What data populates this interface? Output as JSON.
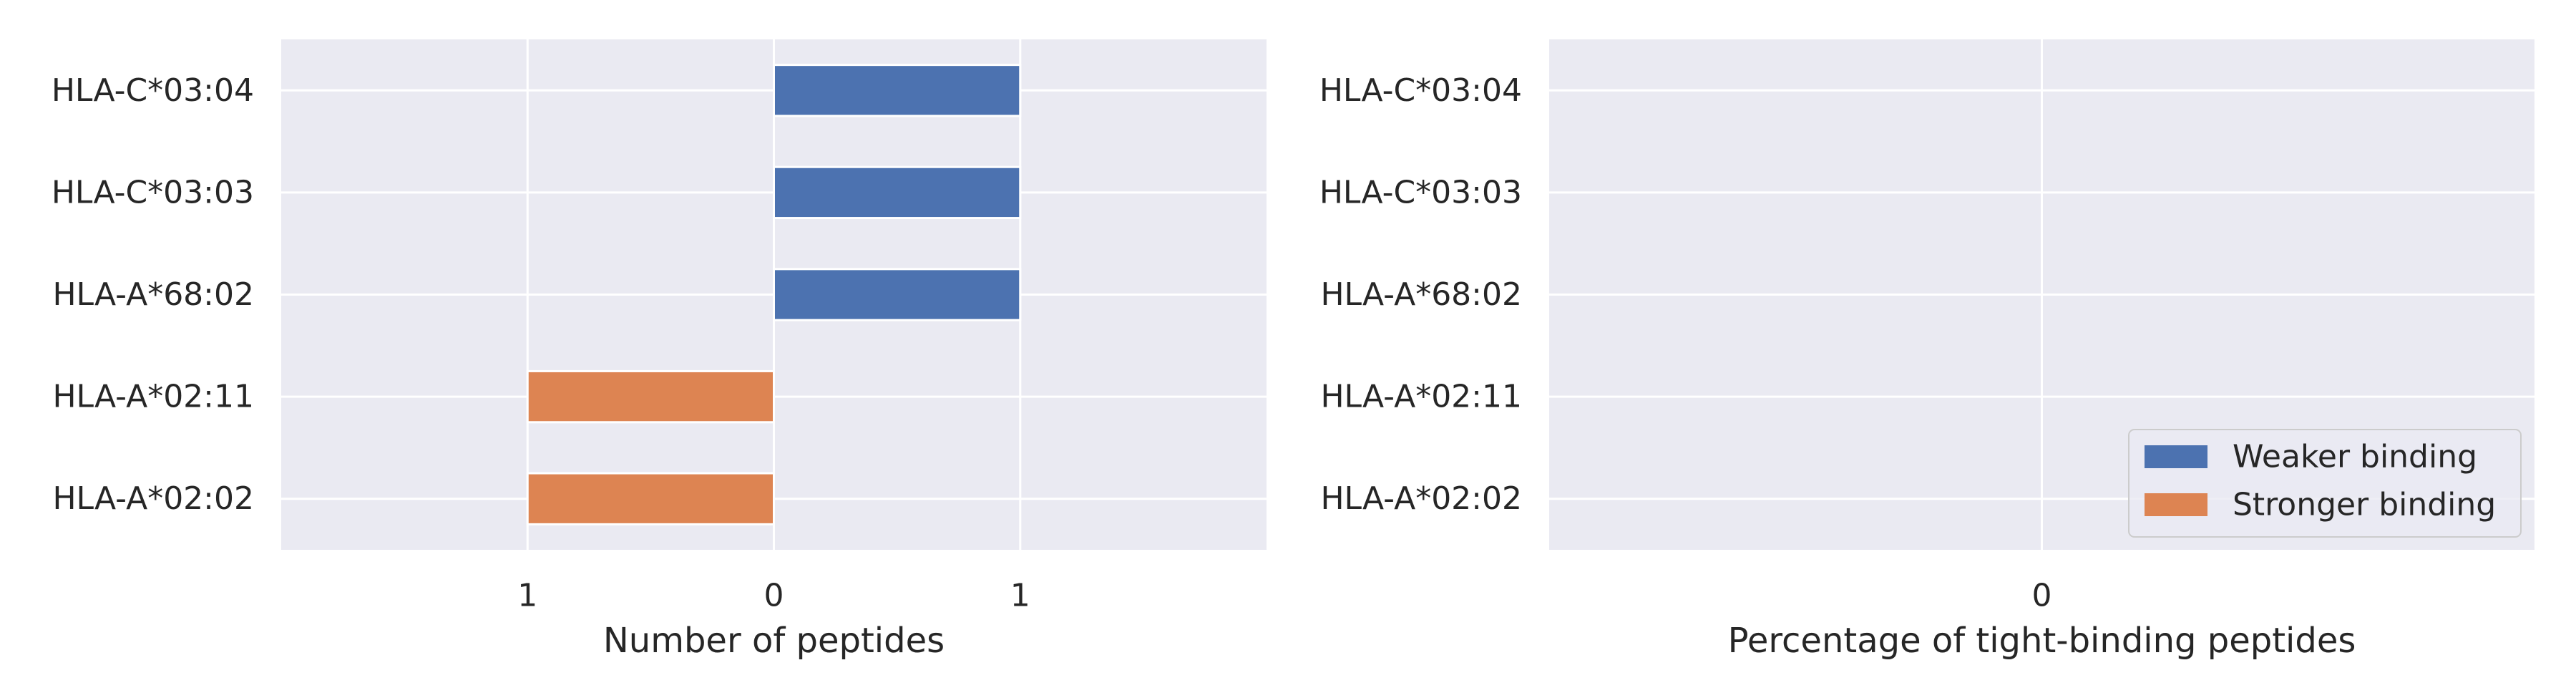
{
  "chart_data": [
    {
      "type": "bar",
      "orientation": "horizontal",
      "diverging": true,
      "categories": [
        "HLA-C*03:04",
        "HLA-C*03:03",
        "HLA-A*68:02",
        "HLA-A*02:11",
        "HLA-A*02:02"
      ],
      "series": [
        {
          "name": "Weaker binding",
          "values": [
            1,
            1,
            1,
            0,
            0
          ],
          "color": "#4c72b0"
        },
        {
          "name": "Stronger binding",
          "values": [
            0,
            0,
            0,
            1,
            1
          ],
          "color": "#dd8452"
        }
      ],
      "xlabel": "Number of peptides",
      "ylabel": "",
      "xlim": [
        -2,
        2
      ],
      "xticks": [
        -1,
        0,
        1
      ],
      "xtick_labels": [
        "1",
        "0",
        "1"
      ],
      "grid": true,
      "background": "#eaeaf2"
    },
    {
      "type": "bar",
      "orientation": "horizontal",
      "categories": [
        "HLA-C*03:04",
        "HLA-C*03:03",
        "HLA-A*68:02",
        "HLA-A*02:11",
        "HLA-A*02:02"
      ],
      "series": [
        {
          "name": "Weaker binding",
          "values": [
            0,
            0,
            0,
            0,
            0
          ],
          "color": "#4c72b0"
        },
        {
          "name": "Stronger binding",
          "values": [
            0,
            0,
            0,
            0,
            0
          ],
          "color": "#dd8452"
        }
      ],
      "xlabel": "Percentage of tight-binding peptides",
      "ylabel": "",
      "xticks": [
        0
      ],
      "xtick_labels": [
        "0"
      ],
      "grid": true,
      "legend": {
        "position": "lower-right",
        "entries": [
          "Weaker binding",
          "Stronger binding"
        ]
      },
      "background": "#eaeaf2"
    }
  ]
}
